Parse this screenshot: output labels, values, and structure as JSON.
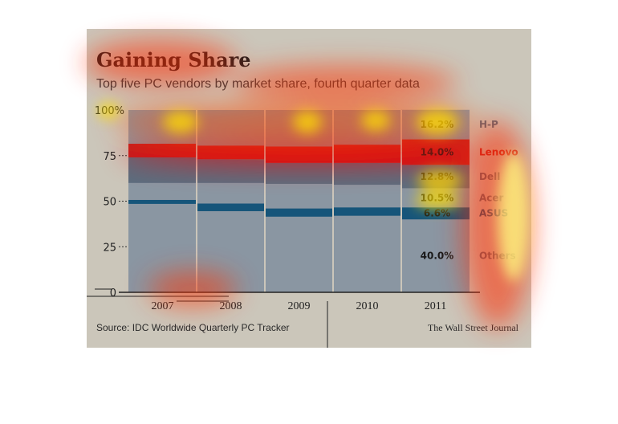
{
  "title": "Gaining Share",
  "subtitle": "Top five PC vendors by market share, fourth quarter data",
  "source": "Source: IDC Worldwide Quarterly PC Tracker",
  "credit": "The Wall Street Journal",
  "chart_data": {
    "type": "bar",
    "stacked": true,
    "categories": [
      "2007",
      "2008",
      "2009",
      "2010",
      "2011"
    ],
    "ylim": [
      0,
      100
    ],
    "yticks": [
      0,
      25,
      50,
      75,
      100
    ],
    "ytick_labels": [
      "0",
      "25",
      "50",
      "75",
      "100%"
    ],
    "grid": false,
    "series": [
      {
        "name": "Others",
        "color": "#8a96a2",
        "values": [
          48.5,
          44.5,
          41.5,
          42.0,
          40.0
        ]
      },
      {
        "name": "ASUS",
        "color": "#16557a",
        "values": [
          2.2,
          4.2,
          4.5,
          4.6,
          6.6
        ]
      },
      {
        "name": "Acer",
        "color": "#8a96a2",
        "values": [
          9.3,
          11.3,
          13.5,
          12.4,
          10.5
        ]
      },
      {
        "name": "Dell",
        "color": "#5c6d7e",
        "values": [
          14.0,
          13.0,
          11.5,
          12.0,
          12.8
        ]
      },
      {
        "name": "Lenovo",
        "color": "#c02020",
        "values": [
          7.5,
          7.5,
          9.0,
          10.0,
          14.0
        ]
      },
      {
        "name": "H-P",
        "color": "#8a96a2",
        "values": [
          18.5,
          19.5,
          20.0,
          19.0,
          16.2
        ]
      }
    ],
    "end_labels": [
      {
        "vendor": "H-P",
        "pct": "16.2%",
        "color": "#5d6a77"
      },
      {
        "vendor": "Lenovo",
        "pct": "14.0%",
        "color": "#c02020"
      },
      {
        "vendor": "Dell",
        "pct": "12.8%",
        "color": "#5d6a77"
      },
      {
        "vendor": "Acer",
        "pct": "10.5%",
        "color": "#5d6a77"
      },
      {
        "vendor": "ASUS",
        "pct": "6.6%",
        "color": "#16557a"
      },
      {
        "vendor": "Others",
        "pct": "40.0%",
        "color": "#5d6a77"
      }
    ]
  }
}
